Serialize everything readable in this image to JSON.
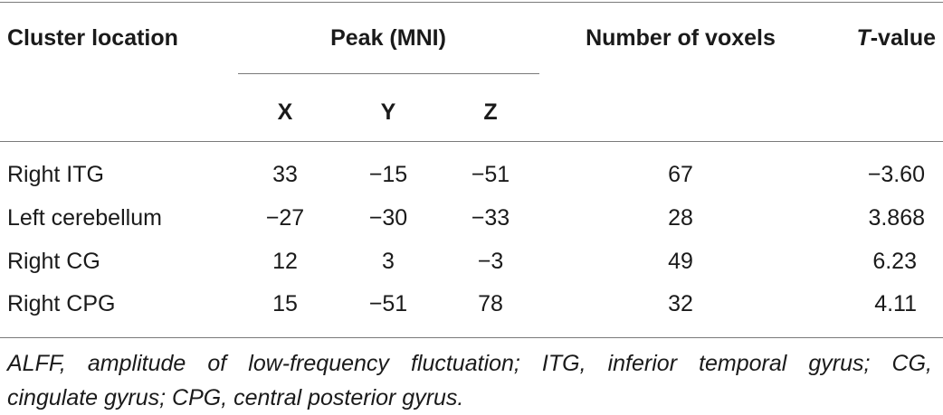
{
  "table": {
    "headers": {
      "cluster_location": "Cluster location",
      "peak": "Peak (MNI)",
      "x": "X",
      "y": "Y",
      "z": "Z",
      "voxels": "Number of voxels",
      "t_value_italic": "T",
      "t_value_rest": "-value"
    },
    "rows": [
      {
        "location": "Right ITG",
        "x": "33",
        "y": "−15",
        "z": "−51",
        "voxels": "67",
        "t": "−3.60"
      },
      {
        "location": "Left cerebellum",
        "x": "−27",
        "y": "−30",
        "z": "−33",
        "voxels": "28",
        "t": "3.868"
      },
      {
        "location": "Right CG",
        "x": "12",
        "y": "3",
        "z": "−3",
        "voxels": "49",
        "t": "6.23"
      },
      {
        "location": "Right CPG",
        "x": "15",
        "y": "−51",
        "z": "78",
        "voxels": "32",
        "t": "4.11"
      }
    ]
  },
  "footnote": {
    "line1": "ALFF, amplitude of low-frequency fluctuation; ITG, inferior temporal gyrus; CG,",
    "line2": "cingulate gyrus; CPG, central posterior gyrus."
  }
}
